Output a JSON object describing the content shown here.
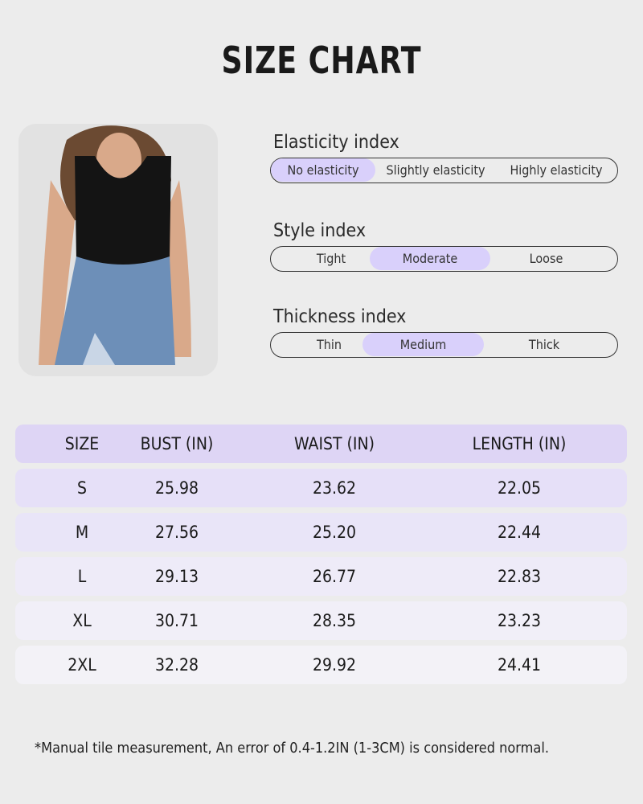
{
  "title": "SIZE CHART",
  "indices": [
    {
      "label": "Elasticity index",
      "options": [
        "No elasticity",
        "Slightly elasticity",
        "Highly elasticity"
      ],
      "selected": 0
    },
    {
      "label": "Style index",
      "options": [
        "Tight",
        "Moderate",
        "Loose"
      ],
      "selected": 1
    },
    {
      "label": "Thickness index",
      "options": [
        "Thin",
        "Medium",
        "Thick"
      ],
      "selected": 1
    }
  ],
  "table": {
    "headers": [
      "SIZE",
      "BUST (IN)",
      "WAIST (IN)",
      "LENGTH (IN)"
    ],
    "rows": [
      [
        "S",
        "25.98",
        "23.62",
        "22.05"
      ],
      [
        "M",
        "27.56",
        "25.20",
        "22.44"
      ],
      [
        "L",
        "29.13",
        "26.77",
        "22.83"
      ],
      [
        "XL",
        "30.71",
        "28.35",
        "23.23"
      ],
      [
        "2XL",
        "32.28",
        "29.92",
        "24.41"
      ]
    ]
  },
  "note": "*Manual tile measurement, An error of 0.4-1.2IN (1-3CM) is considered normal.",
  "colors": {
    "background": "#ececec",
    "highlight": "#d9d0fb",
    "header": "#ded5f5"
  }
}
